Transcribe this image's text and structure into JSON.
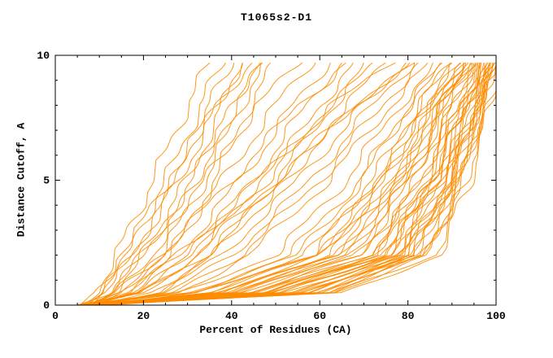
{
  "title": "T1065s2-D1",
  "chart_data": {
    "type": "line",
    "title": "T1065s2-D1",
    "xlabel": "Percent of Residues (CA)",
    "ylabel": "Distance Cutoff, A",
    "xlim": [
      0,
      100
    ],
    "ylim": [
      0,
      10
    ],
    "x_ticks": [
      0,
      20,
      40,
      60,
      80,
      100
    ],
    "y_ticks": [
      0,
      5,
      10
    ],
    "x_minor_step": 5,
    "y_minor_step": 1,
    "line_color": "#ff8c00",
    "anchor_y": [
      0,
      0.5,
      2,
      5,
      8,
      9.7
    ],
    "curves_x_at_anchor_y": [
      [
        6,
        9,
        14,
        22,
        30,
        35
      ],
      [
        7,
        10,
        16,
        25,
        33,
        38
      ],
      [
        6,
        11,
        18,
        27,
        35,
        40
      ],
      [
        8,
        13,
        20,
        30,
        38,
        42
      ],
      [
        7,
        11,
        17,
        28,
        37,
        44
      ],
      [
        9,
        14,
        22,
        32,
        40,
        46
      ],
      [
        6,
        10,
        15,
        26,
        36,
        43
      ],
      [
        8,
        15,
        24,
        34,
        42,
        48
      ],
      [
        10,
        17,
        26,
        36,
        44,
        50
      ],
      [
        7,
        13,
        20,
        31,
        41,
        47
      ],
      [
        6,
        12,
        20,
        34,
        46,
        55
      ],
      [
        8,
        15,
        25,
        38,
        50,
        58
      ],
      [
        7,
        17,
        28,
        42,
        54,
        62
      ],
      [
        9,
        19,
        30,
        45,
        57,
        65
      ],
      [
        6,
        14,
        24,
        40,
        55,
        66
      ],
      [
        8,
        20,
        32,
        48,
        60,
        68
      ],
      [
        10,
        22,
        35,
        50,
        63,
        71
      ],
      [
        7,
        18,
        30,
        47,
        62,
        73
      ],
      [
        9,
        23,
        36,
        52,
        66,
        75
      ],
      [
        6,
        16,
        28,
        46,
        63,
        76
      ],
      [
        8,
        24,
        38,
        55,
        70,
        79
      ],
      [
        10,
        26,
        40,
        58,
        72,
        81
      ],
      [
        7,
        21,
        34,
        52,
        68,
        80
      ],
      [
        9,
        27,
        42,
        60,
        74,
        83
      ],
      [
        6,
        19,
        32,
        50,
        68,
        82
      ],
      [
        8,
        28,
        44,
        62,
        76,
        85
      ],
      [
        6,
        30,
        55,
        70,
        80,
        88
      ],
      [
        7,
        34,
        60,
        74,
        83,
        90
      ],
      [
        6,
        38,
        64,
        77,
        86,
        92
      ],
      [
        8,
        42,
        68,
        80,
        88,
        93
      ],
      [
        7,
        46,
        72,
        83,
        90,
        95
      ],
      [
        6,
        50,
        75,
        85,
        92,
        96
      ],
      [
        8,
        54,
        78,
        87,
        93,
        97
      ],
      [
        7,
        57,
        80,
        89,
        95,
        98
      ],
      [
        6,
        60,
        82,
        90,
        96,
        99
      ],
      [
        8,
        63,
        85,
        92,
        97,
        100
      ],
      [
        7,
        44,
        70,
        82,
        90,
        94
      ],
      [
        6,
        40,
        66,
        79,
        88,
        93
      ],
      [
        9,
        48,
        74,
        86,
        93,
        97
      ],
      [
        8,
        52,
        77,
        88,
        94,
        98
      ],
      [
        7,
        56,
        81,
        91,
        96,
        99
      ],
      [
        6,
        32,
        58,
        73,
        84,
        91
      ],
      [
        9,
        36,
        62,
        78,
        87,
        93
      ],
      [
        8,
        47,
        73,
        85,
        92,
        96
      ],
      [
        7,
        53,
        79,
        89,
        95,
        99
      ],
      [
        6,
        62,
        84,
        92,
        97,
        100
      ],
      [
        10,
        49,
        76,
        87,
        94,
        98
      ],
      [
        9,
        58,
        83,
        91,
        96,
        100
      ],
      [
        8,
        64,
        86,
        93,
        98,
        100
      ],
      [
        7,
        66,
        87,
        94,
        98,
        100
      ],
      [
        6,
        28,
        50,
        66,
        78,
        87
      ],
      [
        7,
        31,
        53,
        69,
        80,
        89
      ],
      [
        8,
        34,
        57,
        72,
        82,
        90
      ],
      [
        6,
        37,
        61,
        75,
        85,
        91
      ],
      [
        7,
        40,
        65,
        78,
        87,
        92
      ],
      [
        9,
        43,
        69,
        81,
        89,
        94
      ],
      [
        8,
        45,
        71,
        83,
        90,
        95
      ],
      [
        6,
        48,
        74,
        85,
        92,
        96
      ],
      [
        7,
        50,
        76,
        86,
        93,
        97
      ],
      [
        9,
        52,
        78,
        88,
        94,
        98
      ],
      [
        8,
        55,
        80,
        90,
        95,
        99
      ],
      [
        6,
        58,
        82,
        91,
        96,
        100
      ],
      [
        7,
        61,
        84,
        92,
        97,
        100
      ],
      [
        10,
        41,
        67,
        80,
        88,
        94
      ],
      [
        11,
        33,
        59,
        74,
        85,
        92
      ],
      [
        12,
        38,
        63,
        77,
        86,
        93
      ],
      [
        10,
        46,
        72,
        84,
        91,
        96
      ],
      [
        11,
        51,
        75,
        86,
        93,
        97
      ],
      [
        12,
        56,
        79,
        89,
        95,
        99
      ],
      [
        10,
        59,
        81,
        90,
        96,
        100
      ]
    ]
  }
}
